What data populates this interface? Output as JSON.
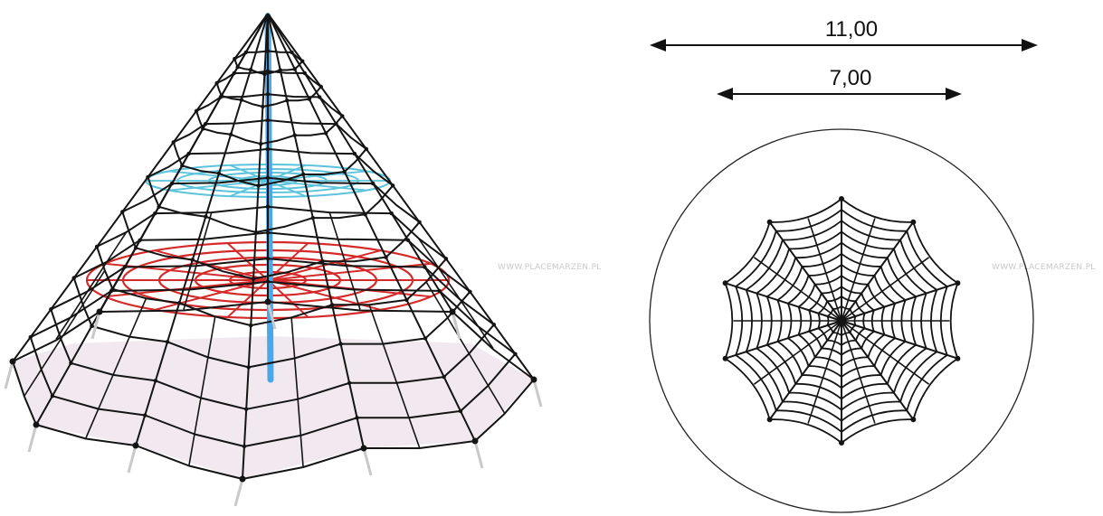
{
  "dimensions": {
    "outer_label": "11,00",
    "inner_label": "7,00"
  },
  "watermarks": {
    "left": "WWW.PLACEMARZEN.PL",
    "right": "WWW.PLACEMARZEN.PL"
  },
  "colors": {
    "rope": "#141414",
    "mast": "#4aa8e8",
    "top_net": "#5cc3dc",
    "mid_net": "#d42a2a",
    "ground": "#f1e9ef",
    "circle": "#222222"
  },
  "icons": {
    "dimension_arrows": "double-arrow-icon",
    "pyramid": "rope-pyramid-icon",
    "plan": "spider-web-icon"
  }
}
